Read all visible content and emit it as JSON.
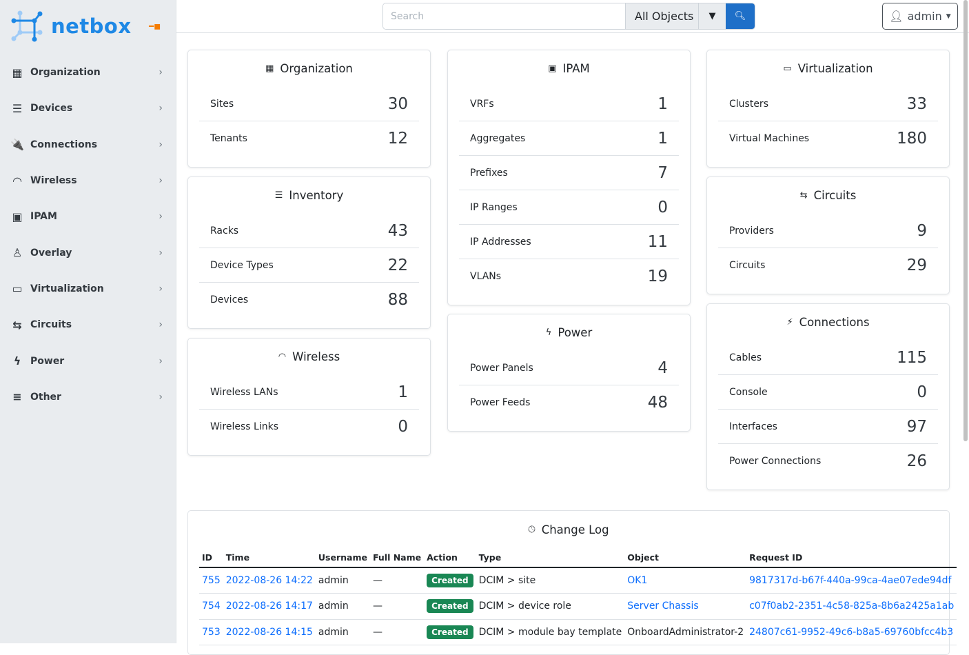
{
  "brand": {
    "name": "netbox",
    "color": "#1e88e5"
  },
  "sidebar": {
    "items": [
      {
        "label": "Organization",
        "icon": "building-icon",
        "glyph": "▦"
      },
      {
        "label": "Devices",
        "icon": "server-icon",
        "glyph": "☰"
      },
      {
        "label": "Connections",
        "icon": "plug-icon",
        "glyph": "🔌"
      },
      {
        "label": "Wireless",
        "icon": "wifi-icon",
        "glyph": "◠"
      },
      {
        "label": "IPAM",
        "icon": "ipam-icon",
        "glyph": "▣"
      },
      {
        "label": "Overlay",
        "icon": "graph-icon",
        "glyph": "♙"
      },
      {
        "label": "Virtualization",
        "icon": "monitor-icon",
        "glyph": "▭"
      },
      {
        "label": "Circuits",
        "icon": "transit-icon",
        "glyph": "⇆"
      },
      {
        "label": "Power",
        "icon": "flash-icon",
        "glyph": "ϟ"
      },
      {
        "label": "Other",
        "icon": "notes-icon",
        "glyph": "≡"
      }
    ]
  },
  "header": {
    "search_placeholder": "Search",
    "search_scope": "All Objects",
    "user": "admin"
  },
  "cards": [
    {
      "title": "Organization",
      "glyph": "▦",
      "rows": [
        [
          "Sites",
          "30"
        ],
        [
          "Tenants",
          "12"
        ]
      ]
    },
    {
      "title": "Inventory",
      "glyph": "☰",
      "rows": [
        [
          "Racks",
          "43"
        ],
        [
          "Device Types",
          "22"
        ],
        [
          "Devices",
          "88"
        ]
      ]
    },
    {
      "title": "Wireless",
      "glyph": "◠",
      "rows": [
        [
          "Wireless LANs",
          "1"
        ],
        [
          "Wireless Links",
          "0"
        ]
      ]
    },
    {
      "title": "IPAM",
      "glyph": "▣",
      "rows": [
        [
          "VRFs",
          "1"
        ],
        [
          "Aggregates",
          "1"
        ],
        [
          "Prefixes",
          "7"
        ],
        [
          "IP Ranges",
          "0"
        ],
        [
          "IP Addresses",
          "11"
        ],
        [
          "VLANs",
          "19"
        ]
      ]
    },
    {
      "title": "Power",
      "glyph": "ϟ",
      "rows": [
        [
          "Power Panels",
          "4"
        ],
        [
          "Power Feeds",
          "48"
        ]
      ]
    },
    {
      "title": "Virtualization",
      "glyph": "▭",
      "rows": [
        [
          "Clusters",
          "33"
        ],
        [
          "Virtual Machines",
          "180"
        ]
      ]
    },
    {
      "title": "Circuits",
      "glyph": "⇆",
      "rows": [
        [
          "Providers",
          "9"
        ],
        [
          "Circuits",
          "29"
        ]
      ]
    },
    {
      "title": "Connections",
      "glyph": "⚡",
      "rows": [
        [
          "Cables",
          "115"
        ],
        [
          "Console",
          "0"
        ],
        [
          "Interfaces",
          "97"
        ],
        [
          "Power Connections",
          "26"
        ]
      ]
    }
  ],
  "changelog": {
    "title": "Change Log",
    "columns": [
      "ID",
      "Time",
      "Username",
      "Full Name",
      "Action",
      "Type",
      "Object",
      "Request ID"
    ],
    "rows": [
      {
        "id": "755",
        "time": "2022-08-26 14:22",
        "user": "admin",
        "full": "—",
        "action": "Created",
        "type": "DCIM > site",
        "object": "OK1",
        "object_link": true,
        "req": "9817317d-b67f-440a-99ca-4ae07ede94df"
      },
      {
        "id": "754",
        "time": "2022-08-26 14:17",
        "user": "admin",
        "full": "—",
        "action": "Created",
        "type": "DCIM > device role",
        "object": "Server Chassis",
        "object_link": true,
        "req": "c07f0ab2-2351-4c58-825a-8b6a2425a1ab"
      },
      {
        "id": "753",
        "time": "2022-08-26 14:15",
        "user": "admin",
        "full": "—",
        "action": "Created",
        "type": "DCIM > module bay template",
        "object": "OnboardAdministrator-2",
        "object_link": false,
        "req": "24807c61-9952-49c6-b8a5-69760bfcc4b3"
      }
    ]
  }
}
